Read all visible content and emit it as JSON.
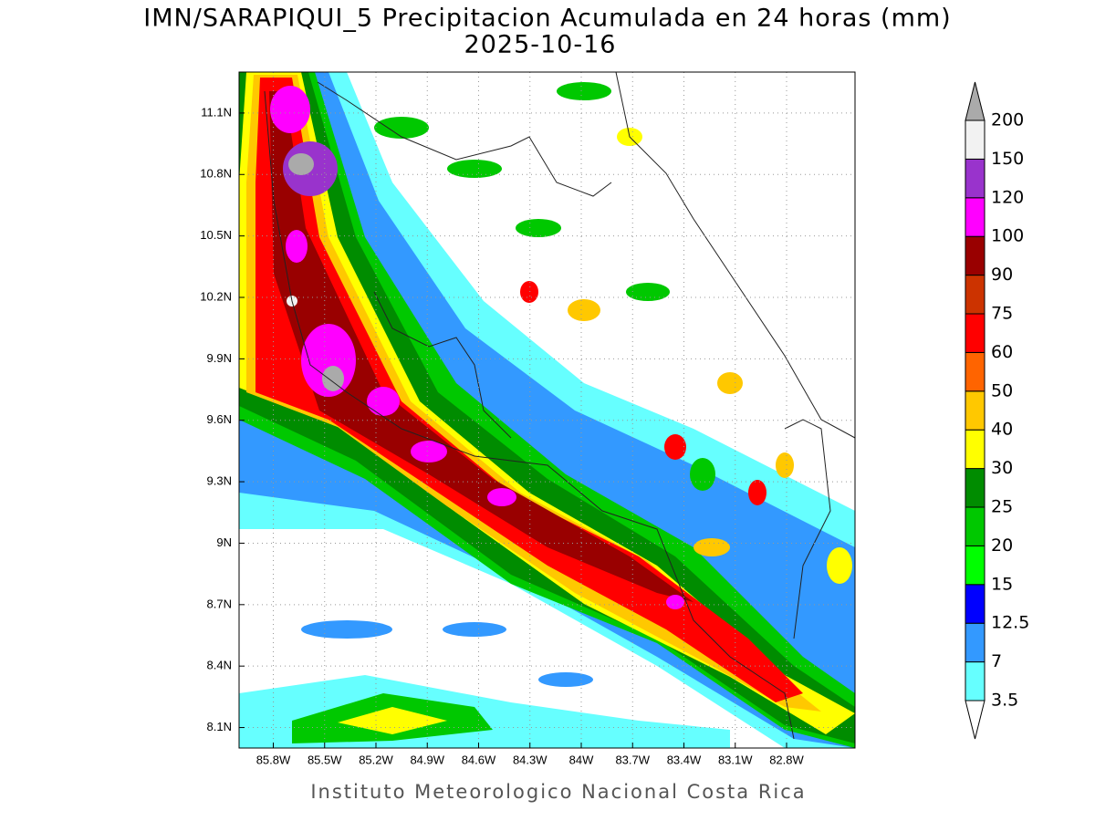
{
  "map": {
    "title": "IMN/SARAPIQUI_5 Precipitacion Acumulada en 24 horas (mm)",
    "subtitle": "2025-10-16",
    "footer": "Instituto Meteorologico Nacional Costa Rica",
    "xlim": [
      -86.0,
      -82.4
    ],
    "ylim": [
      8.0,
      11.3
    ],
    "xticks": [
      {
        "value": -85.8,
        "label": "85.8W"
      },
      {
        "value": -85.5,
        "label": "85.5W"
      },
      {
        "value": -85.2,
        "label": "85.2W"
      },
      {
        "value": -84.9,
        "label": "84.9W"
      },
      {
        "value": -84.6,
        "label": "84.6W"
      },
      {
        "value": -84.3,
        "label": "84.3W"
      },
      {
        "value": -84.0,
        "label": "84W"
      },
      {
        "value": -83.7,
        "label": "83.7W"
      },
      {
        "value": -83.4,
        "label": "83.4W"
      },
      {
        "value": -83.1,
        "label": "83.1W"
      },
      {
        "value": -82.8,
        "label": "82.8W"
      }
    ],
    "yticks": [
      {
        "value": 8.1,
        "label": "8.1N"
      },
      {
        "value": 8.4,
        "label": "8.4N"
      },
      {
        "value": 8.7,
        "label": "8.7N"
      },
      {
        "value": 9.0,
        "label": "9N"
      },
      {
        "value": 9.3,
        "label": "9.3N"
      },
      {
        "value": 9.6,
        "label": "9.6N"
      },
      {
        "value": 9.9,
        "label": "9.9N"
      },
      {
        "value": 10.2,
        "label": "10.2N"
      },
      {
        "value": 10.5,
        "label": "10.5N"
      },
      {
        "value": 10.8,
        "label": "10.8N"
      },
      {
        "value": 11.1,
        "label": "11.1N"
      }
    ],
    "grid": true,
    "colorbar": {
      "levels": [
        3.5,
        7,
        12.5,
        15,
        20,
        25,
        30,
        40,
        50,
        60,
        75,
        90,
        100,
        120,
        150,
        200
      ],
      "colors": [
        "#66ffff",
        "#3399ff",
        "#0000ff",
        "#00ff00",
        "#00c800",
        "#008c00",
        "#ffff00",
        "#ffc800",
        "#ff6400",
        "#ff0000",
        "#cc3300",
        "#990000",
        "#ff00ff",
        "#9933cc",
        "#f2f2f2"
      ],
      "under_color": "#ffffff",
      "over_color": "#aaaaaa"
    }
  }
}
